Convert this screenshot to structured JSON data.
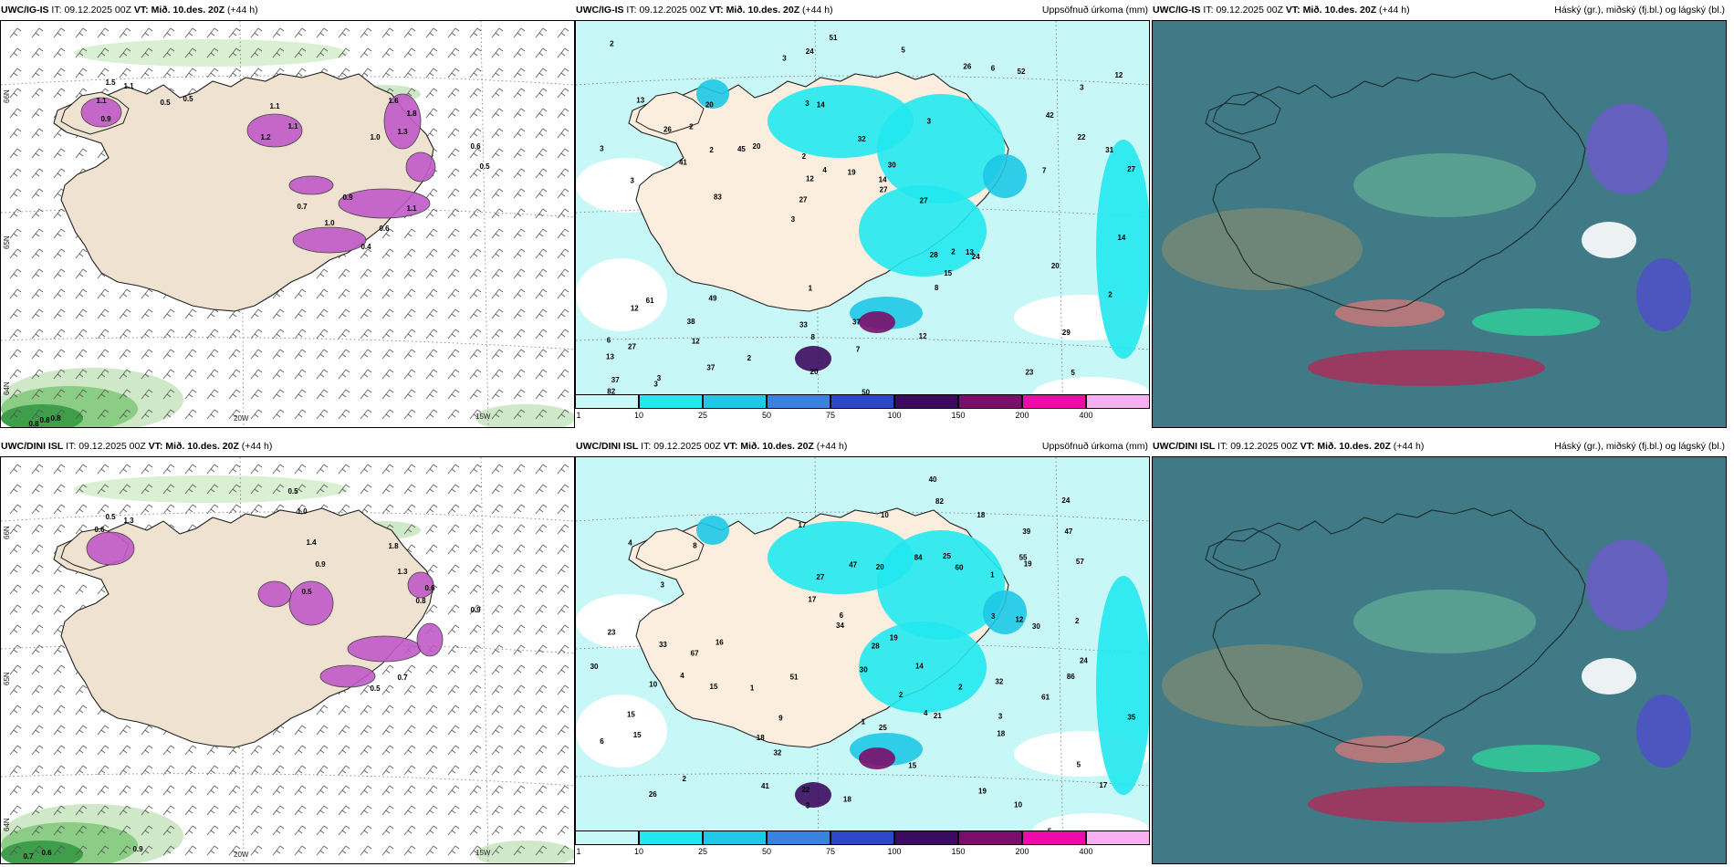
{
  "panels": [
    {
      "model": "UWC/IG-IS",
      "it_label": "IT:",
      "it": "09.12.2025 00Z",
      "vt_label": "VT:",
      "vt": "Mið. 10.des. 20Z",
      "lead": "(+44 h)",
      "right_title": ""
    },
    {
      "model": "UWC/IG-IS",
      "it_label": "IT:",
      "it": "09.12.2025 00Z",
      "vt_label": "VT:",
      "vt": "Mið. 10.des. 20Z",
      "lead": "(+44 h)",
      "right_title": "Uppsöfnuð úrkoma (mm)"
    },
    {
      "model": "UWC/IG-IS",
      "it_label": "IT:",
      "it": "09.12.2025 00Z",
      "vt_label": "VT:",
      "vt": "Mið. 10.des. 20Z",
      "lead": "(+44 h)",
      "right_title": "Háský (gr.), miðský (fj.bl.) og lágský (bl.)"
    },
    {
      "model": "UWC/DINI ISL",
      "it_label": "IT:",
      "it": "09.12.2025 00Z",
      "vt_label": "VT:",
      "vt": "Mið. 10.des. 20Z",
      "lead": "(+44 h)",
      "right_title": ""
    },
    {
      "model": "UWC/DINI ISL",
      "it_label": "IT:",
      "it": "09.12.2025 00Z",
      "vt_label": "VT:",
      "vt": "Mið. 10.des. 20Z",
      "lead": "(+44 h)",
      "right_title": "Uppsöfnuð úrkoma (mm)"
    },
    {
      "model": "UWC/DINI ISL",
      "it_label": "IT:",
      "it": "09.12.2025 00Z",
      "vt_label": "VT:",
      "vt": "Mið. 10.des. 20Z",
      "lead": "(+44 h)",
      "right_title": "Háský (gr.), miðský (fj.bl.) og lágský (bl.)"
    }
  ],
  "axis_labels": {
    "lat_66": "66N",
    "lat_65": "65N",
    "lat_64": "64N",
    "lon_20": "20W",
    "lon_15": "15W"
  },
  "colorbar": {
    "ticks": [
      "1",
      "10",
      "25",
      "50",
      "75",
      "100",
      "150",
      "200",
      "400"
    ],
    "colors": [
      "#c8f7f7",
      "#22e8ee",
      "#1ec8e6",
      "#3a82e0",
      "#2c47c8",
      "#3c0a5e",
      "#7a0e6a",
      "#ee0aa8",
      "#f6b0f2"
    ]
  },
  "precip_top": [
    "5",
    "3",
    "3",
    "3",
    "3",
    "3",
    "3",
    "32",
    "61",
    "20",
    "13",
    "12",
    "14",
    "30",
    "24",
    "13",
    "24",
    "27",
    "28",
    "22",
    "27",
    "33",
    "12",
    "20",
    "26",
    "49",
    "23",
    "29",
    "13",
    "50",
    "45",
    "41",
    "8",
    "37",
    "31",
    "14",
    "37",
    "8",
    "27",
    "12",
    "42",
    "12",
    "15",
    "12",
    "38",
    "26",
    "82",
    "37",
    "52",
    "51",
    "83",
    "3",
    "2",
    "6",
    "3",
    "5",
    "3",
    "4",
    "2",
    "1",
    "2",
    "2",
    "2",
    "6",
    "2",
    "26",
    "14",
    "2",
    "7",
    "19",
    "27",
    "27",
    "20",
    "20",
    "7"
  ],
  "precip_bottom": [
    "5",
    "4",
    "4",
    "4",
    "5",
    "3",
    "2",
    "1",
    "1",
    "47",
    "60",
    "10",
    "32",
    "17",
    "14",
    "15",
    "32",
    "28",
    "23",
    "26",
    "24",
    "20",
    "12",
    "35",
    "24",
    "33",
    "15",
    "30",
    "34",
    "47",
    "21",
    "10",
    "18",
    "25",
    "27",
    "61",
    "86",
    "19",
    "39",
    "14",
    "9",
    "25",
    "41",
    "40",
    "51",
    "67",
    "57",
    "82",
    "84",
    "1",
    "2",
    "2",
    "3",
    "30",
    "17",
    "30",
    "3",
    "6",
    "2",
    "3",
    "22",
    "55",
    "8",
    "10",
    "6",
    "15",
    "16",
    "19",
    "18",
    "19",
    "18",
    "18",
    "15",
    "17"
  ],
  "snow_top": [
    "1.5",
    "1.1",
    "1.1",
    "0.5",
    "0.5",
    "0.9",
    "1.1",
    "1.1",
    "1.2",
    "1.6",
    "1.8",
    "1.3",
    "1.0",
    "0.6",
    "0.5",
    "0.9",
    "1.0",
    "0.6",
    "0.4",
    "1.1",
    "0.7",
    "0.8",
    "0.8",
    "0.8"
  ],
  "snow_bottom": [
    "0.5",
    "1.3",
    "0.6",
    "0.5",
    "1.0",
    "1.4",
    "0.9",
    "0.5",
    "1.8",
    "1.3",
    "0.6",
    "0.8",
    "0.9",
    "0.5",
    "0.7",
    "0.7",
    "0.6",
    "0.6",
    "0.9"
  ]
}
